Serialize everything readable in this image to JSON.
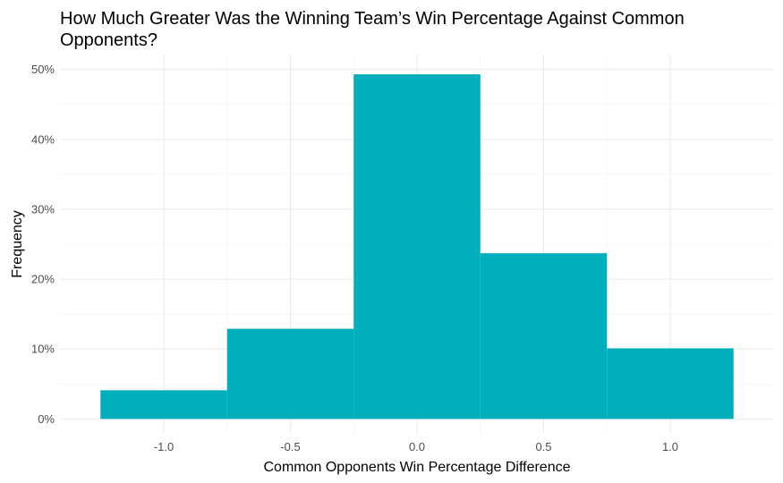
{
  "chart_data": {
    "type": "bar",
    "title": "How Much Greater Was the Winning Team’s Win Percentage Against Common Opponents?",
    "xlabel": "Common Opponents Win Percentage Difference",
    "ylabel": "Frequency",
    "bins": [
      {
        "x_start": -1.25,
        "x_end": -0.75,
        "value": 0.041
      },
      {
        "x_start": -0.75,
        "x_end": -0.25,
        "value": 0.129
      },
      {
        "x_start": -0.25,
        "x_end": 0.25,
        "value": 0.493
      },
      {
        "x_start": 0.25,
        "x_end": 0.75,
        "value": 0.237
      },
      {
        "x_start": 0.75,
        "x_end": 1.25,
        "value": 0.101
      }
    ],
    "xlim": [
      -1.41,
      1.41
    ],
    "ylim": [
      -0.02,
      0.52
    ],
    "x_ticks": [
      {
        "value": -1.0,
        "label": "-1.0"
      },
      {
        "value": -0.5,
        "label": "-0.5"
      },
      {
        "value": 0.0,
        "label": "0.0"
      },
      {
        "value": 0.5,
        "label": "0.5"
      },
      {
        "value": 1.0,
        "label": "1.0"
      }
    ],
    "y_ticks": [
      {
        "value": 0.0,
        "label": "0%"
      },
      {
        "value": 0.1,
        "label": "10%"
      },
      {
        "value": 0.2,
        "label": "20%"
      },
      {
        "value": 0.3,
        "label": "30%"
      },
      {
        "value": 0.4,
        "label": "40%"
      },
      {
        "value": 0.5,
        "label": "50%"
      }
    ],
    "bar_color": "#00AFBB",
    "grid": true,
    "legend": "none"
  }
}
